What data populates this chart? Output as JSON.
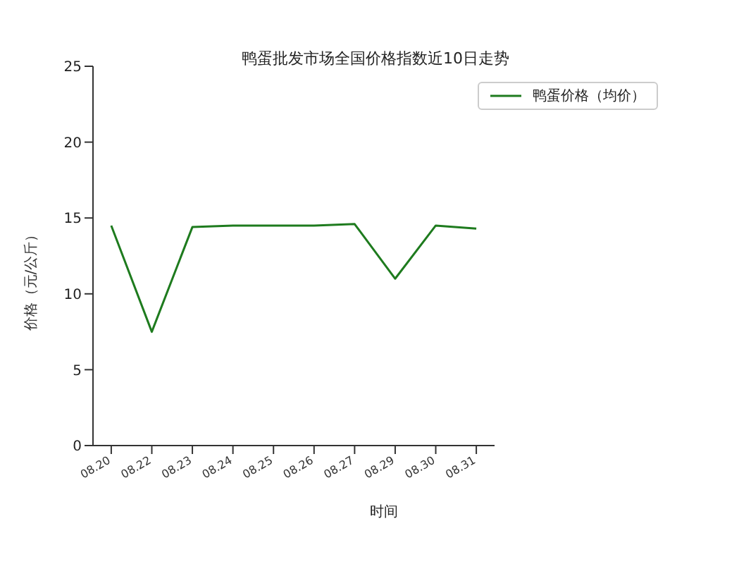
{
  "chart_data": {
    "type": "line",
    "title": "鸭蛋批发市场全国价格指数近10日走势",
    "xlabel": "时间",
    "ylabel": "价格（元/公斤）",
    "categories": [
      "08.20",
      "08.22",
      "08.23",
      "08.24",
      "08.25",
      "08.26",
      "08.27",
      "08.29",
      "08.30",
      "08.31"
    ],
    "series": [
      {
        "name": "鸭蛋价格（均价）",
        "color": "#1e7b1e",
        "values": [
          14.5,
          7.5,
          14.4,
          14.5,
          14.5,
          14.5,
          14.6,
          11,
          14.5,
          14.3
        ]
      }
    ],
    "ylim": [
      0,
      25
    ],
    "yticks": [
      0,
      5,
      10,
      15,
      20,
      25
    ],
    "legend": "top right",
    "grid": false,
    "marker": "none",
    "line_style": "solid"
  }
}
